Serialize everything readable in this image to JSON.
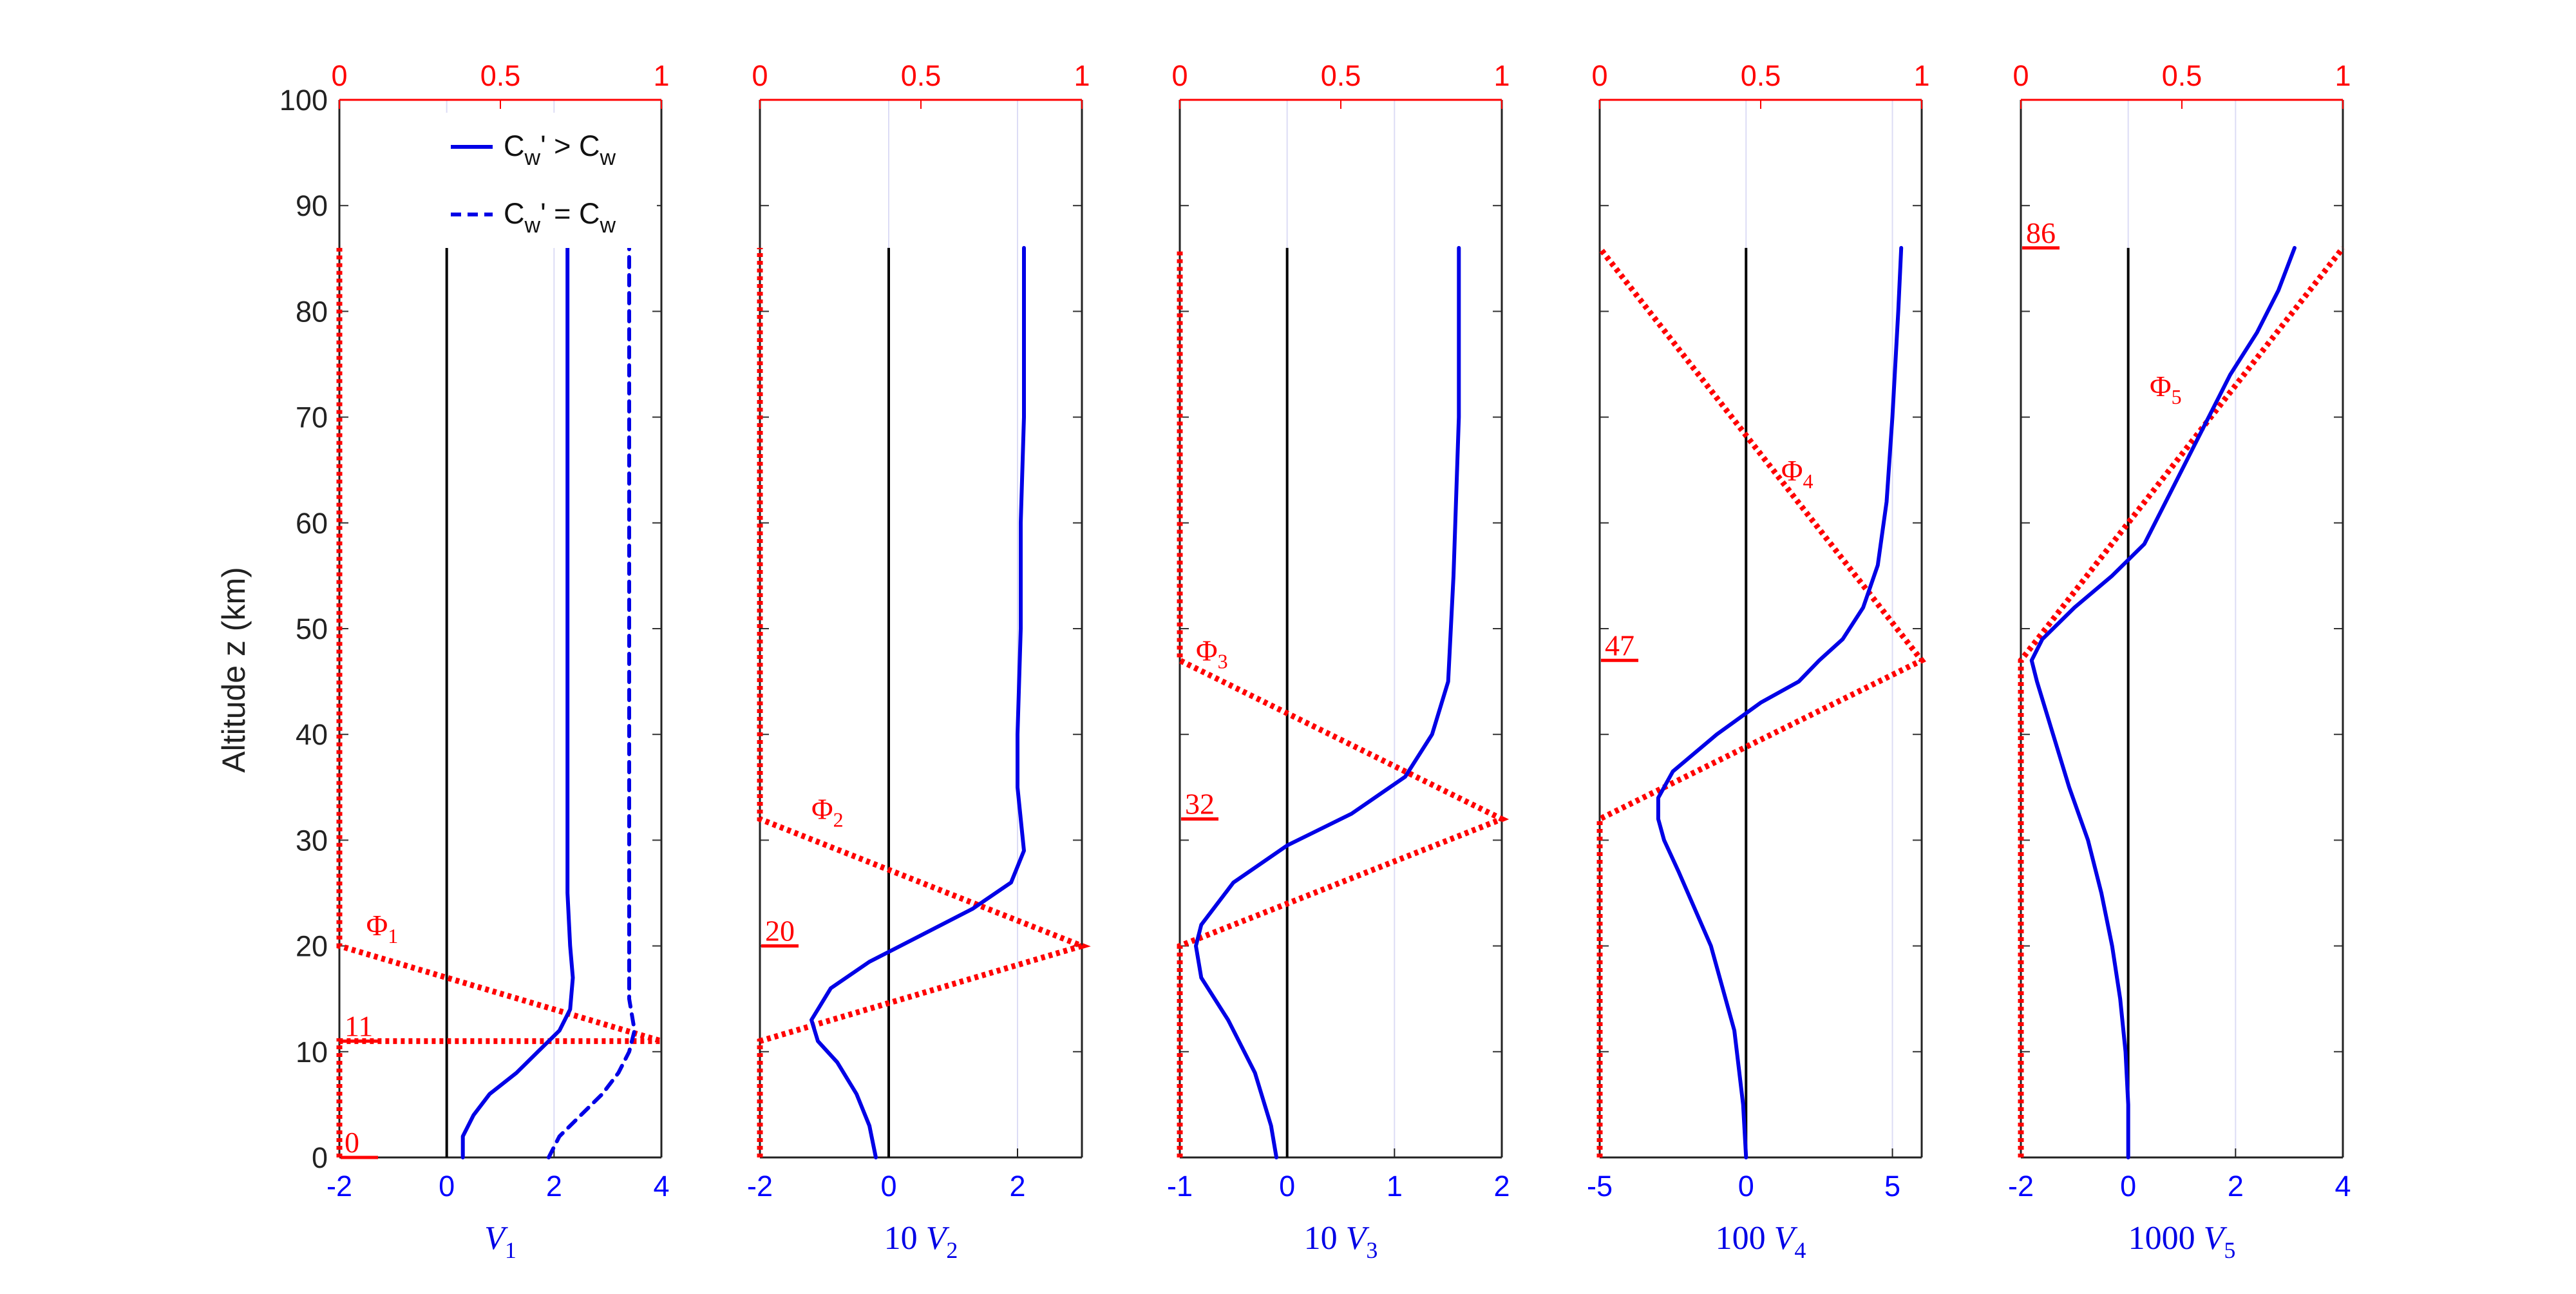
{
  "figure": {
    "ylabel": "Altitude z (km)",
    "y_ticks": [
      "0",
      "10",
      "20",
      "30",
      "40",
      "50",
      "60",
      "70",
      "80",
      "90",
      "100"
    ],
    "top_ticks": [
      "0",
      "0.5",
      "1"
    ],
    "legend": {
      "solid_label": "C",
      "solid_sub1": "w",
      "solid_mid": "' > C",
      "solid_sub2": "w",
      "dashed_label": "C",
      "dashed_sub1": "w",
      "dashed_mid": "' = C",
      "dashed_sub2": "w"
    },
    "colors": {
      "profile": "#0000e6",
      "phi": "#ff0000",
      "axis": "#000000",
      "grid": "#dcdcf5"
    }
  },
  "chart_data": [
    {
      "type": "line",
      "xlabel_prefix": "",
      "xlabel_var": "V",
      "xlabel_sub": "1",
      "xlim": [
        -2,
        4
      ],
      "x_ticks": [
        "-2",
        "0",
        "2",
        "4"
      ],
      "ylim": [
        0,
        100
      ],
      "top_xlim": [
        0,
        1
      ],
      "phi_label": "Φ",
      "phi_sub": "1",
      "phi_label_pos": [
        -1.5,
        21
      ],
      "level_labels": [
        {
          "text": "0",
          "z": 0
        },
        {
          "text": "11",
          "z": 11
        }
      ],
      "phi_points": [
        [
          0,
          0
        ],
        [
          0,
          11
        ],
        [
          1,
          11
        ],
        [
          0,
          20
        ],
        [
          0,
          86
        ]
      ],
      "series": [
        {
          "name": "C_w' > C_w",
          "style": "solid",
          "points": [
            [
              0.3,
              0
            ],
            [
              0.3,
              2
            ],
            [
              0.5,
              4
            ],
            [
              0.8,
              6
            ],
            [
              1.3,
              8
            ],
            [
              1.7,
              10
            ],
            [
              2.1,
              12
            ],
            [
              2.3,
              14
            ],
            [
              2.35,
              17
            ],
            [
              2.3,
              20
            ],
            [
              2.25,
              25
            ],
            [
              2.25,
              40
            ],
            [
              2.25,
              60
            ],
            [
              2.25,
              86
            ]
          ]
        },
        {
          "name": "C_w' = C_w",
          "style": "dashed",
          "points": [
            [
              1.9,
              0
            ],
            [
              2.1,
              2
            ],
            [
              2.5,
              4
            ],
            [
              2.9,
              6
            ],
            [
              3.2,
              8
            ],
            [
              3.4,
              10
            ],
            [
              3.5,
              12
            ],
            [
              3.4,
              15
            ],
            [
              3.4,
              20
            ],
            [
              3.4,
              30
            ],
            [
              3.4,
              50
            ],
            [
              3.4,
              86
            ]
          ]
        }
      ]
    },
    {
      "type": "line",
      "xlabel_prefix": "10",
      "xlabel_var": "V",
      "xlabel_sub": "2",
      "xlim": [
        -2,
        3
      ],
      "x_ticks": [
        "-2",
        "0",
        "2"
      ],
      "ylim": [
        0,
        100
      ],
      "top_xlim": [
        0,
        1
      ],
      "phi_label": "Φ",
      "phi_sub": "2",
      "phi_label_pos": [
        -1.2,
        32
      ],
      "level_labels": [
        {
          "text": "20",
          "z": 20
        }
      ],
      "phi_points": [
        [
          0,
          0
        ],
        [
          0,
          11
        ],
        [
          1,
          20
        ],
        [
          0,
          32
        ],
        [
          0,
          86
        ]
      ],
      "series": [
        {
          "name": "C_w' > C_w",
          "style": "solid",
          "points": [
            [
              -0.2,
              0
            ],
            [
              -0.3,
              3
            ],
            [
              -0.5,
              6
            ],
            [
              -0.8,
              9
            ],
            [
              -1.1,
              11
            ],
            [
              -1.2,
              13
            ],
            [
              -0.9,
              16
            ],
            [
              -0.3,
              18.5
            ],
            [
              0.5,
              21
            ],
            [
              1.3,
              23.5
            ],
            [
              1.9,
              26
            ],
            [
              2.1,
              29
            ],
            [
              2.05,
              32
            ],
            [
              2.0,
              35
            ],
            [
              2.0,
              40
            ],
            [
              2.05,
              50
            ],
            [
              2.05,
              60
            ],
            [
              2.1,
              70
            ],
            [
              2.1,
              86
            ]
          ]
        }
      ]
    },
    {
      "type": "line",
      "xlabel_prefix": "10",
      "xlabel_var": "V",
      "xlabel_sub": "3",
      "xlim": [
        -1,
        2
      ],
      "x_ticks": [
        "-1",
        "0",
        "1",
        "2"
      ],
      "ylim": [
        0,
        100
      ],
      "top_xlim": [
        0,
        1
      ],
      "phi_label": "Φ",
      "phi_sub": "3",
      "phi_label_pos": [
        -0.85,
        47
      ],
      "level_labels": [
        {
          "text": "32",
          "z": 32
        }
      ],
      "phi_points": [
        [
          0,
          0
        ],
        [
          0,
          20
        ],
        [
          1,
          32
        ],
        [
          0,
          47
        ],
        [
          0,
          86
        ]
      ],
      "series": [
        {
          "name": "C_w' > C_w",
          "style": "solid",
          "points": [
            [
              -0.1,
              0
            ],
            [
              -0.15,
              3
            ],
            [
              -0.3,
              8
            ],
            [
              -0.55,
              13
            ],
            [
              -0.8,
              17
            ],
            [
              -0.85,
              20
            ],
            [
              -0.8,
              22
            ],
            [
              -0.5,
              26
            ],
            [
              0,
              29.5
            ],
            [
              0.6,
              32.5
            ],
            [
              1.1,
              36
            ],
            [
              1.35,
              40
            ],
            [
              1.5,
              45
            ],
            [
              1.55,
              55
            ],
            [
              1.6,
              70
            ],
            [
              1.6,
              86
            ]
          ]
        }
      ]
    },
    {
      "type": "line",
      "xlabel_prefix": "100",
      "xlabel_var": "V",
      "xlabel_sub": "4",
      "xlim": [
        -5,
        6
      ],
      "x_ticks": [
        "-5",
        "0",
        "5"
      ],
      "ylim": [
        0,
        100
      ],
      "top_xlim": [
        0,
        1
      ],
      "phi_label": "Φ",
      "phi_sub": "4",
      "phi_label_pos": [
        1.2,
        64
      ],
      "level_labels": [
        {
          "text": "47",
          "z": 47
        }
      ],
      "phi_points": [
        [
          0,
          0
        ],
        [
          0,
          32
        ],
        [
          1,
          47
        ],
        [
          0,
          86
        ]
      ],
      "series": [
        {
          "name": "C_w' > C_w",
          "style": "solid",
          "points": [
            [
              0,
              0
            ],
            [
              -0.1,
              5
            ],
            [
              -0.4,
              12
            ],
            [
              -1.2,
              20
            ],
            [
              -2.3,
              27
            ],
            [
              -2.8,
              30
            ],
            [
              -3.0,
              32
            ],
            [
              -3.0,
              34
            ],
            [
              -2.5,
              36.5
            ],
            [
              -1.0,
              40
            ],
            [
              0.5,
              43
            ],
            [
              1.8,
              45
            ],
            [
              2.5,
              47
            ],
            [
              3.3,
              49
            ],
            [
              4.0,
              52
            ],
            [
              4.5,
              56
            ],
            [
              4.8,
              62
            ],
            [
              5.0,
              70
            ],
            [
              5.2,
              80
            ],
            [
              5.3,
              86
            ]
          ]
        }
      ]
    },
    {
      "type": "line",
      "xlabel_prefix": "1000",
      "xlabel_var": "V",
      "xlabel_sub": "5",
      "xlim": [
        -2,
        4
      ],
      "x_ticks": [
        "-2",
        "0",
        "2",
        "4"
      ],
      "ylim": [
        0,
        100
      ],
      "top_xlim": [
        0,
        1
      ],
      "phi_label": "Φ",
      "phi_sub": "5",
      "phi_label_pos": [
        0.4,
        72
      ],
      "level_labels": [
        {
          "text": "86",
          "z": 86
        }
      ],
      "phi_points": [
        [
          0,
          0
        ],
        [
          0,
          47
        ],
        [
          1,
          86
        ]
      ],
      "series": [
        {
          "name": "C_w' > C_w",
          "style": "solid",
          "points": [
            [
              0,
              0
            ],
            [
              0,
              5
            ],
            [
              -0.05,
              10
            ],
            [
              -0.15,
              15
            ],
            [
              -0.3,
              20
            ],
            [
              -0.5,
              25
            ],
            [
              -0.75,
              30
            ],
            [
              -1.1,
              35
            ],
            [
              -1.4,
              40
            ],
            [
              -1.7,
              45
            ],
            [
              -1.8,
              47
            ],
            [
              -1.6,
              49
            ],
            [
              -1.0,
              52
            ],
            [
              -0.3,
              55
            ],
            [
              0.3,
              58
            ],
            [
              0.7,
              62
            ],
            [
              1.3,
              68
            ],
            [
              1.9,
              74
            ],
            [
              2.4,
              78
            ],
            [
              2.8,
              82
            ],
            [
              3.1,
              86
            ]
          ]
        }
      ]
    }
  ]
}
